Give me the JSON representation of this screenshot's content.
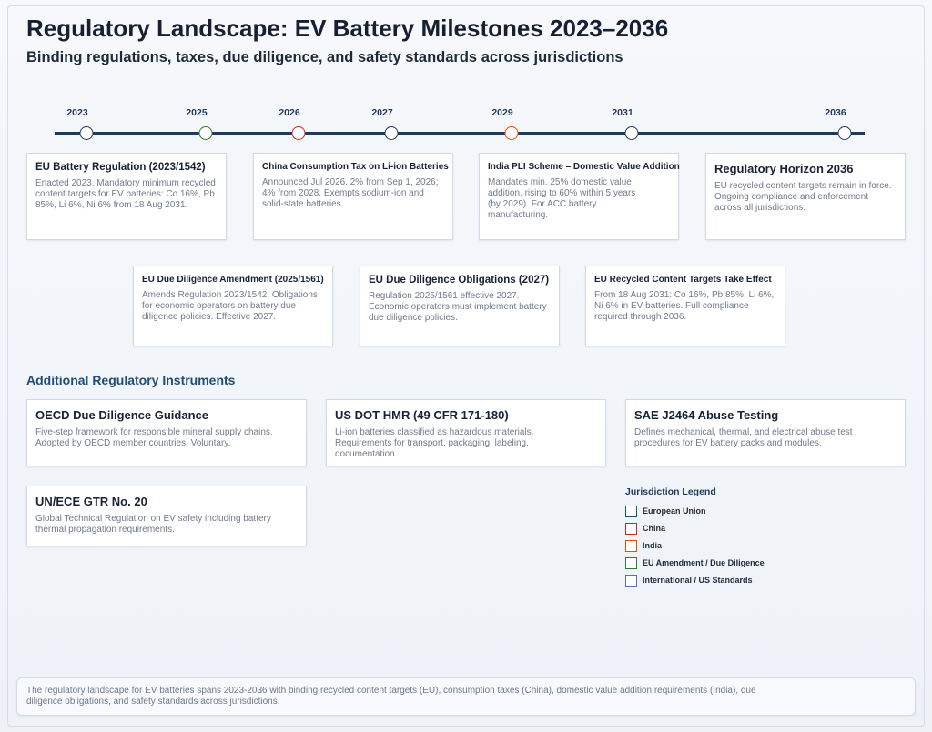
{
  "title": "Regulatory Landscape: EV Battery Milestones 2023–2036",
  "subtitle": "Binding regulations, taxes, due diligence, and safety standards across jurisdictions",
  "timeline": {
    "years": [
      "2023",
      "2025",
      "2026",
      "2027",
      "2029",
      "2031",
      "2036"
    ],
    "node_colors": [
      "#1f3a5f",
      "#2e7d32",
      "#c62828",
      "#1f3a5f",
      "#e65100",
      "#1f3a5f",
      "#1f3a5f"
    ]
  },
  "milestones": [
    {
      "title": "EU Battery Regulation (2023/1542)",
      "body": "Enacted 2023. Mandatory minimum recycled content targets for EV batteries: Co 16%, Pb 85%, Li 6%, Ni 6% from 18 Aug 2031."
    },
    {
      "title": "China Consumption Tax on Li-ion Batteries",
      "body": "Announced Jul 2026. 2% from Sep 1, 2026; 4% from 2028. Exempts sodium-ion and solid-state batteries."
    },
    {
      "title": "India PLI Scheme – Domestic Value Addition",
      "body": "Mandates min. 25% domestic value addition, rising to 60% within 5 years (by 2029). For ACC battery manufacturing."
    },
    {
      "title": "Regulatory Horizon 2036",
      "body": "EU recycled content targets remain in force. Ongoing compliance and enforcement across all jurisdictions."
    },
    {
      "title": "EU Due Diligence Amendment (2025/1561)",
      "body": "Amends Regulation 2023/1542. Obligations for economic operators on battery due diligence policies. Effective 2027."
    },
    {
      "title": "EU Due Diligence Obligations (2027)",
      "body": "Regulation 2025/1561 effective 2027. Economic operators must implement battery due diligence policies."
    },
    {
      "title": "EU Recycled Content Targets Take Effect",
      "body": "From 18 Aug 2031: Co 16%, Pb 85%, Li 6%, Ni 6% in EV batteries. Full compliance required through 2036."
    }
  ],
  "instruments_heading": "Additional Regulatory Instruments",
  "instruments": [
    {
      "title": "OECD Due Diligence Guidance",
      "body": "Five-step framework for responsible mineral supply chains. Adopted by OECD member countries. Voluntary."
    },
    {
      "title": "US DOT HMR (49 CFR 171-180)",
      "body": "Li-ion batteries classified as hazardous materials. Requirements for transport, packaging, labeling, documentation."
    },
    {
      "title": "SAE J2464 Abuse Testing",
      "body": "Defines mechanical, thermal, and electrical abuse test procedures for EV battery packs and modules."
    },
    {
      "title": "UN/ECE GTR No. 20",
      "body": "Global Technical Regulation on EV safety including battery thermal propagation requirements."
    }
  ],
  "legend": {
    "title": "Jurisdiction Legend",
    "items": [
      {
        "label": "European Union",
        "color": "#1f4e79"
      },
      {
        "label": "China",
        "color": "#c62828"
      },
      {
        "label": "India",
        "color": "#e65100"
      },
      {
        "label": "EU Amendment / Due Diligence",
        "color": "#2e7d32"
      },
      {
        "label": "International / US Standards",
        "color": "#5c6bc0"
      }
    ]
  },
  "footer": "The regulatory landscape for EV batteries spans 2023-2036 with binding recycled content targets (EU), consumption taxes (China), domestic value addition requirements (India), due diligence obligations, and safety standards across jurisdictions."
}
